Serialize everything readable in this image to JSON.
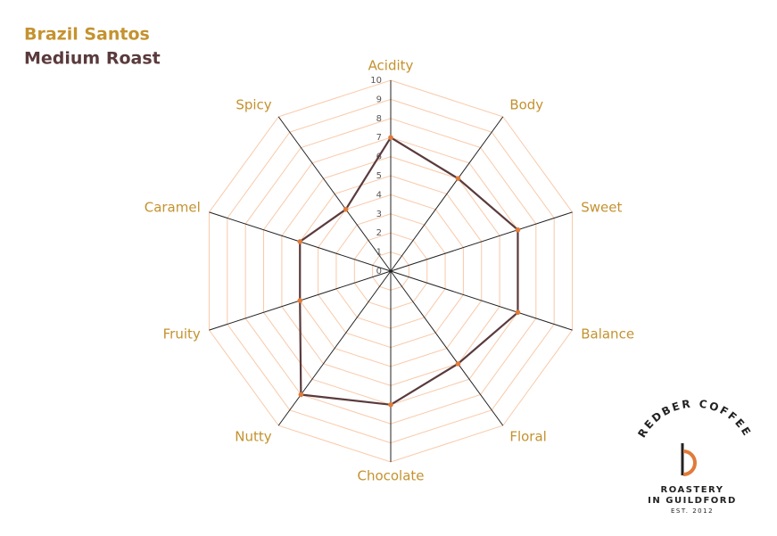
{
  "chart_data": {
    "type": "radar",
    "title": "Brazil Santos",
    "subtitle": "Medium Roast",
    "categories": [
      "Acidity",
      "Body",
      "Sweet",
      "Balance",
      "Floral",
      "Chocolate",
      "Nutty",
      "Fruity",
      "Caramel",
      "Spicy"
    ],
    "series": [
      {
        "name": "Brazil Santos",
        "color": "#5a3a3c",
        "marker_color": "#e07b39",
        "values": [
          7,
          6,
          7,
          7,
          6,
          7,
          8,
          5,
          5,
          4
        ]
      }
    ],
    "rlim": [
      0,
      10
    ],
    "rticks": [
      0,
      1,
      2,
      3,
      4,
      5,
      6,
      7,
      8,
      9,
      10
    ],
    "grid": true,
    "grid_color": "#f9c9a8"
  },
  "logo": {
    "name": "REDBER COFFEE",
    "line1": "ROASTERY",
    "line2": "IN GUILDFORD",
    "established": "EST. 2012"
  }
}
